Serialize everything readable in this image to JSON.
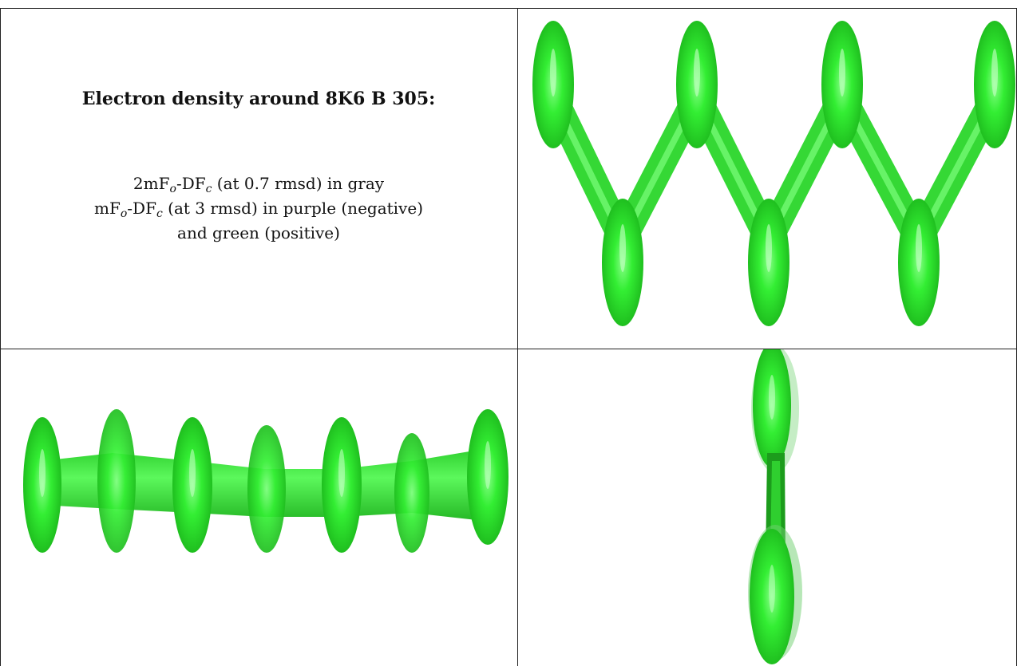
{
  "title": "Electron density around 8K6 B 305:",
  "legend": {
    "line1_pre": "2mF",
    "line1_sub1": "o",
    "line1_mid": "-DF",
    "line1_sub2": "c",
    "line1_post": " (at 0.7 rmsd) in gray",
    "line2_pre": "mF",
    "line2_sub1": "o",
    "line2_mid": "-DF",
    "line2_sub2": "c",
    "line2_post": " (at 3 rmsd) in purple (negative)",
    "line3": "and green (positive)"
  },
  "colors": {
    "density_green": "#33ee33",
    "density_dark": "#22b822",
    "density_light": "#99ff99",
    "border": "#222222"
  }
}
